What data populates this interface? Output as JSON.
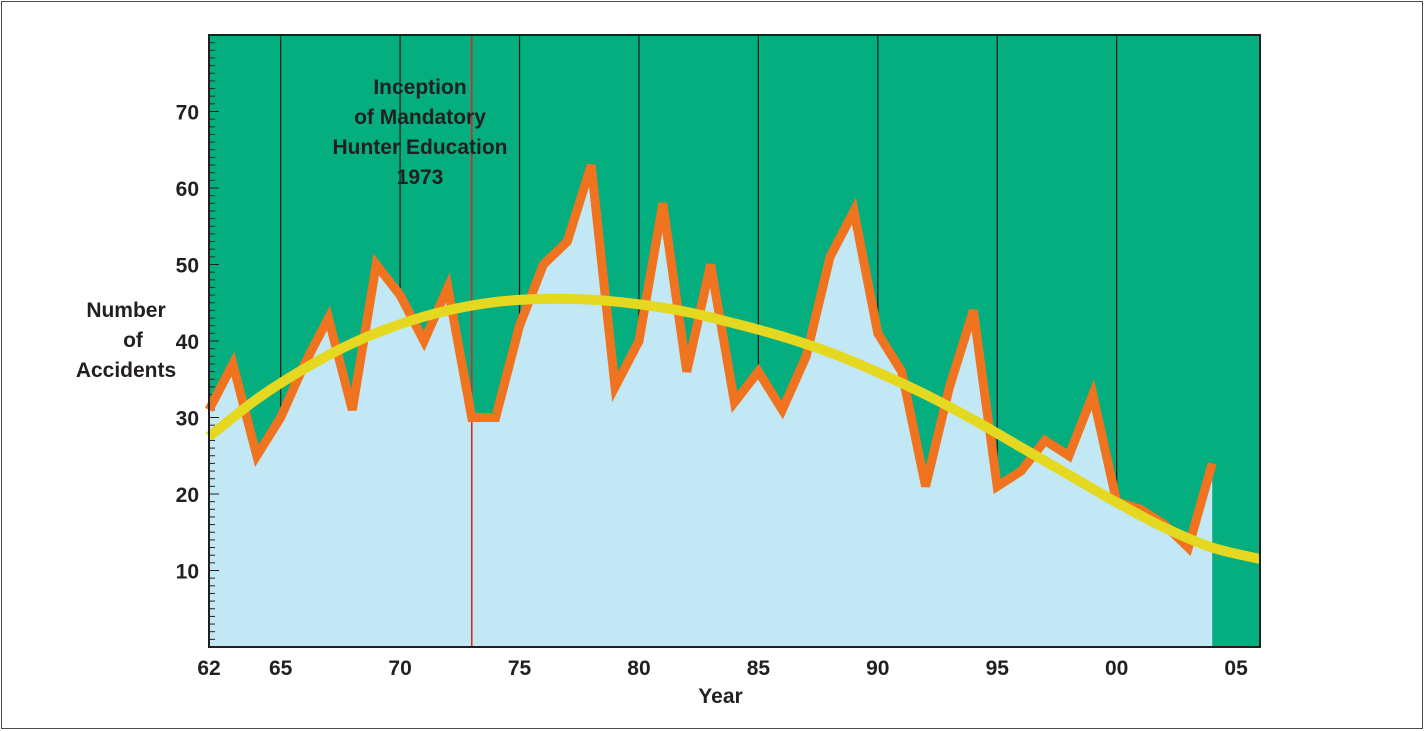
{
  "chart_data": {
    "type": "area",
    "xlabel": "Year",
    "ylabel_lines": [
      "Number",
      "of",
      "Accidents"
    ],
    "xlim": [
      1962,
      2006
    ],
    "ylim": [
      0,
      80
    ],
    "x_ticks": [
      {
        "value": 1962,
        "label": "62"
      },
      {
        "value": 1965,
        "label": "65"
      },
      {
        "value": 1970,
        "label": "70"
      },
      {
        "value": 1975,
        "label": "75"
      },
      {
        "value": 1980,
        "label": "80"
      },
      {
        "value": 1985,
        "label": "85"
      },
      {
        "value": 1990,
        "label": "90"
      },
      {
        "value": 1995,
        "label": "95"
      },
      {
        "value": 2000,
        "label": "00"
      },
      {
        "value": 2005,
        "label": "05"
      }
    ],
    "y_ticks": [
      {
        "value": 10,
        "label": "10"
      },
      {
        "value": 20,
        "label": "20"
      },
      {
        "value": 30,
        "label": "30"
      },
      {
        "value": 40,
        "label": "40"
      },
      {
        "value": 50,
        "label": "50"
      },
      {
        "value": 60,
        "label": "60"
      },
      {
        "value": 70,
        "label": "70"
      }
    ],
    "vertical_gridlines": [
      1965,
      1970,
      1975,
      1980,
      1985,
      1990,
      1995,
      2000
    ],
    "series": [
      {
        "kind": "accidents",
        "x": [
          1962,
          1963,
          1964,
          1965,
          1966,
          1967,
          1968,
          1969,
          1970,
          1971,
          1972,
          1973,
          1974,
          1975,
          1976,
          1977,
          1978,
          1979,
          1980,
          1981,
          1982,
          1983,
          1984,
          1985,
          1986,
          1987,
          1988,
          1989,
          1990,
          1991,
          1992,
          1993,
          1994,
          1995,
          1996,
          1997,
          1998,
          1999,
          2000,
          2001,
          2002,
          2003,
          2004
        ],
        "values": [
          31,
          37,
          25,
          30,
          37,
          43,
          31,
          50,
          46,
          40,
          47,
          30,
          30,
          42,
          50,
          53,
          63,
          34,
          40,
          58,
          36,
          50,
          32,
          36,
          31,
          38,
          51,
          57,
          41,
          36,
          21,
          34,
          44,
          21,
          23,
          27,
          25,
          33,
          19,
          18,
          16,
          13,
          24
        ]
      },
      {
        "kind": "trend",
        "x": [
          1962,
          1964,
          1966,
          1968,
          1970,
          1972,
          1974,
          1976,
          1978,
          1980,
          1982,
          1984,
          1986,
          1988,
          1990,
          1992,
          1994,
          1996,
          1998,
          2000,
          2002,
          2004,
          2006
        ],
        "values": [
          27.5,
          32.4,
          36.4,
          39.7,
          42.2,
          44.0,
          45.1,
          45.5,
          45.4,
          44.8,
          43.8,
          42.3,
          40.6,
          38.5,
          35.9,
          33.0,
          29.7,
          26.1,
          22.5,
          18.9,
          15.6,
          13.0,
          11.5
        ]
      }
    ],
    "annotation": {
      "event_year": 1973,
      "lines": [
        "Inception",
        "of Mandatory",
        "Hunter Education",
        "1973"
      ]
    },
    "colors": {
      "background_green": "#04ae7e",
      "area_fill": "#c2e8f5",
      "accidents_line": "#f0731f",
      "trend_line": "#e4d820",
      "event_line": "#d42a2a",
      "gridline": "#1a1a1a",
      "axis": "#231f20"
    }
  }
}
